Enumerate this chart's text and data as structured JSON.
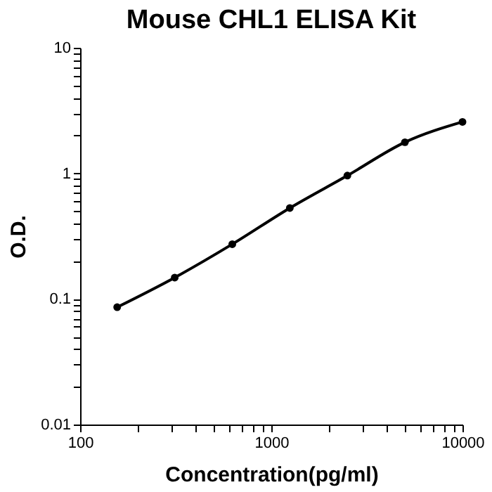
{
  "chart_data": {
    "type": "line",
    "title": "Mouse CHL1 ELISA Kit",
    "xlabel": "Concentration(pg/ml)",
    "ylabel": "O.D.",
    "x": [
      156.25,
      312.5,
      625,
      1250,
      2500,
      5000,
      10000
    ],
    "series": [
      {
        "color": "#000000",
        "values": [
          0.086,
          0.148,
          0.273,
          0.53,
          0.96,
          1.77,
          2.57
        ]
      }
    ],
    "log": "xy",
    "xlim": [
      100,
      10000
    ],
    "ylim": [
      0.01,
      10
    ],
    "xticks": [
      100,
      {
        "value": 200,
        "label": null
      },
      {
        "value": 300,
        "label": null
      },
      {
        "value": 400,
        "label": null
      },
      {
        "value": 500,
        "label": null
      },
      {
        "value": 600,
        "label": null
      },
      {
        "value": 700,
        "label": null
      },
      {
        "value": 800,
        "label": null
      },
      {
        "value": 900,
        "label": null
      },
      1000,
      {
        "value": 2000,
        "label": null
      },
      {
        "value": 3000,
        "label": null
      },
      {
        "value": 4000,
        "label": null
      },
      {
        "value": 5000,
        "label": null
      },
      {
        "value": 6000,
        "label": null
      },
      {
        "value": 7000,
        "label": null
      },
      {
        "value": 8000,
        "label": null
      },
      {
        "value": 9000,
        "label": null
      },
      10000
    ],
    "yticks": [
      0.01,
      {
        "value": 0.02,
        "label": null
      },
      {
        "value": 0.03,
        "label": null
      },
      {
        "value": 0.04,
        "label": null
      },
      {
        "value": 0.05,
        "label": null
      },
      {
        "value": 0.06,
        "label": null
      },
      {
        "value": 0.07,
        "label": null
      },
      {
        "value": 0.08,
        "label": null
      },
      {
        "value": 0.09,
        "label": null
      },
      0.1,
      {
        "value": 0.2,
        "label": null
      },
      {
        "value": 0.3,
        "label": null
      },
      {
        "value": 0.4,
        "label": null
      },
      {
        "value": 0.5,
        "label": null
      },
      {
        "value": 0.6,
        "label": null
      },
      {
        "value": 0.7,
        "label": null
      },
      {
        "value": 0.8,
        "label": null
      },
      {
        "value": 0.9,
        "label": null
      },
      1,
      {
        "value": 2,
        "label": null
      },
      {
        "value": 3,
        "label": null
      },
      {
        "value": 4,
        "label": null
      },
      {
        "value": 5,
        "label": null
      },
      {
        "value": 6,
        "label": null
      },
      {
        "value": 7,
        "label": null
      },
      {
        "value": 8,
        "label": null
      },
      {
        "value": 9,
        "label": null
      },
      10
    ],
    "grid": false,
    "marker": "circle",
    "line_style": "solid"
  }
}
